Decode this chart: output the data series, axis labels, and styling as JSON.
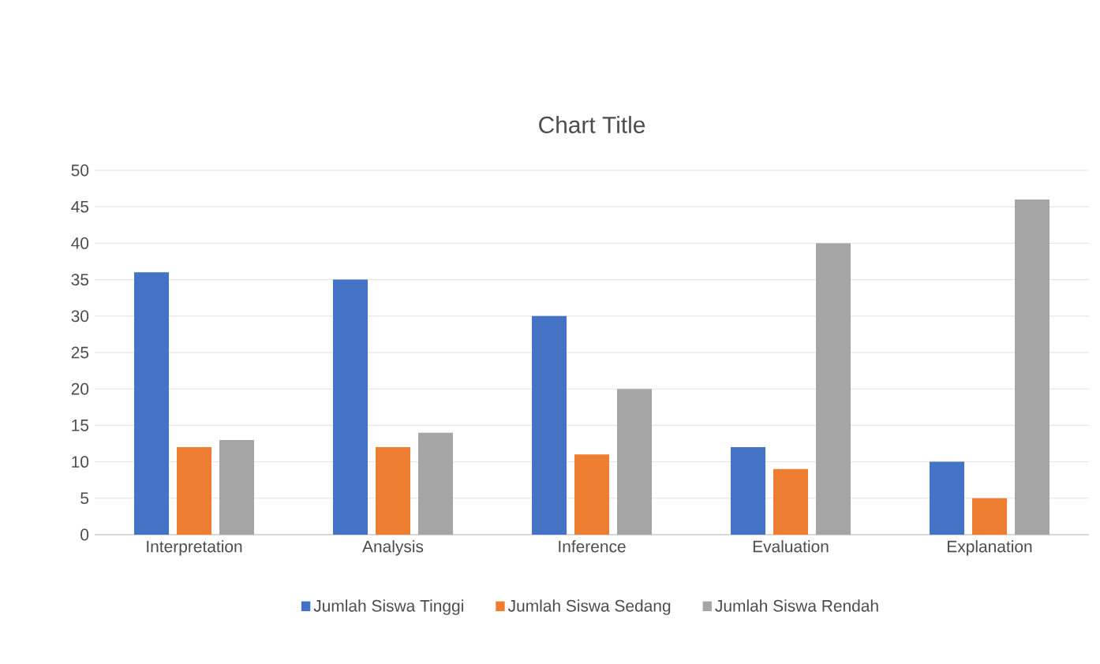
{
  "chart_data": {
    "type": "bar",
    "title": "Chart Title",
    "categories": [
      "Interpretation",
      "Analysis",
      "Inference",
      "Evaluation",
      "Explanation"
    ],
    "series": [
      {
        "name": "Jumlah Siswa Tinggi",
        "color": "#4472c4",
        "values": [
          36,
          35,
          30,
          12,
          10
        ]
      },
      {
        "name": "Jumlah Siswa Sedang",
        "color": "#ed7d31",
        "values": [
          12,
          12,
          11,
          9,
          5
        ]
      },
      {
        "name": "Jumlah Siswa Rendah",
        "color": "#a5a5a5",
        "values": [
          13,
          14,
          20,
          40,
          46
        ]
      }
    ],
    "ylim": [
      0,
      50
    ],
    "yticks": [
      0,
      5,
      10,
      15,
      20,
      25,
      30,
      35,
      40,
      45,
      50
    ],
    "grid": "y",
    "legend": "bottom"
  }
}
